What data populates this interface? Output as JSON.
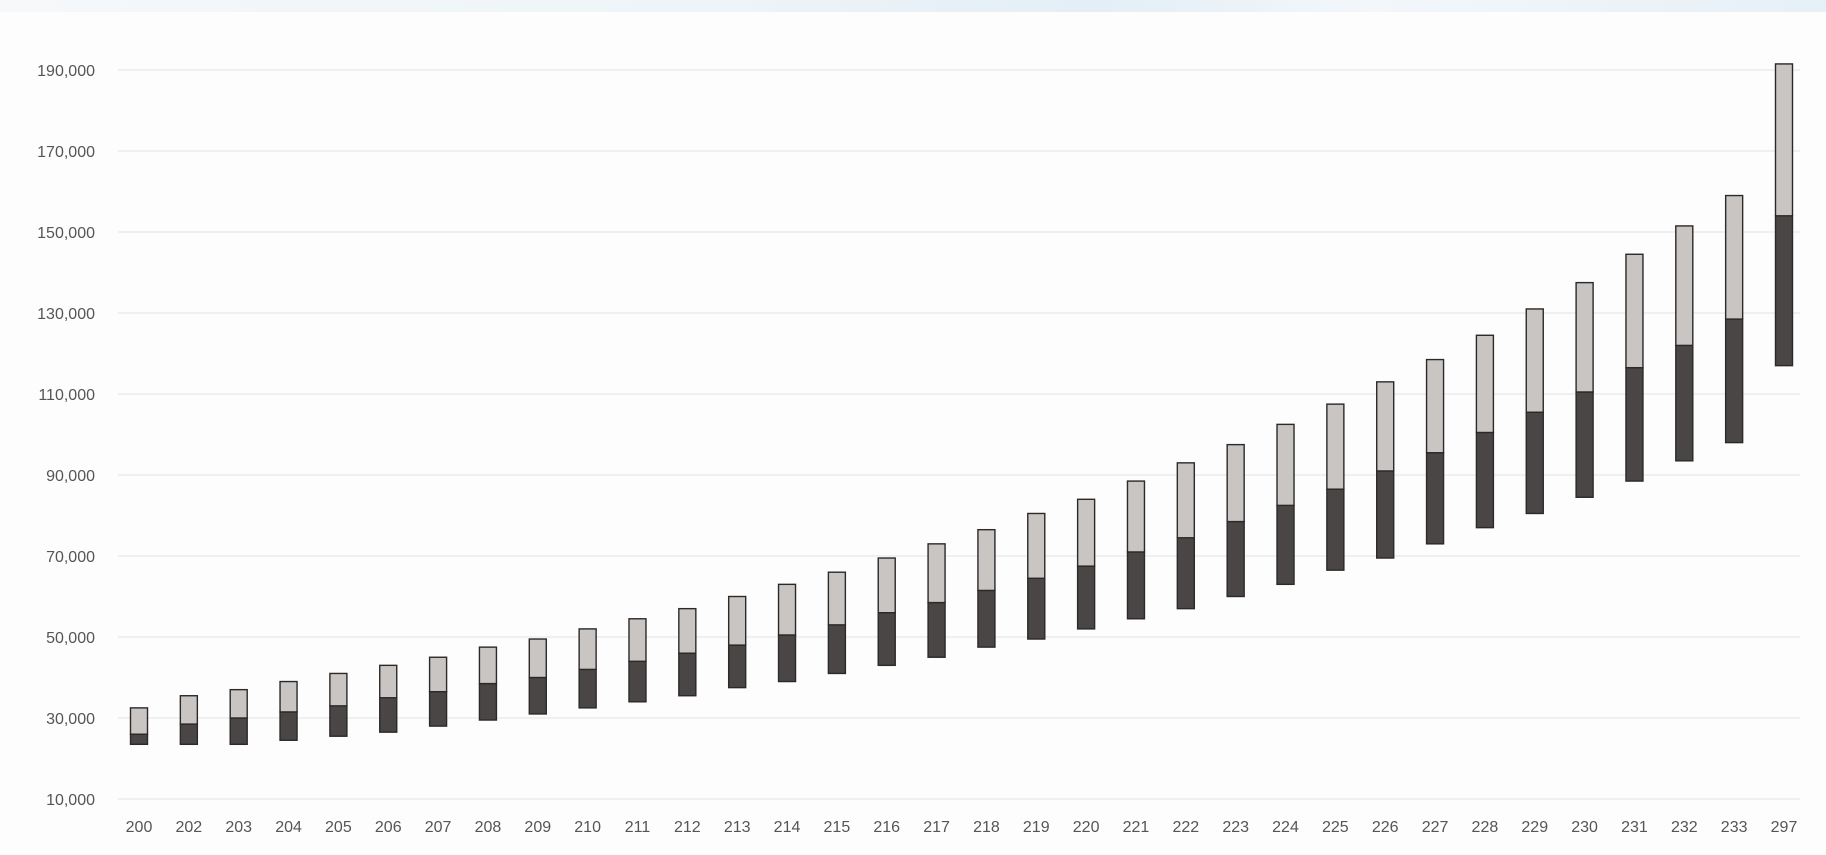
{
  "chart_data": {
    "type": "bar",
    "subtype": "floating-stacked-range",
    "title": "",
    "xlabel": "",
    "ylabel": "",
    "ylim": [
      10000,
      200000
    ],
    "y_ticks": [
      10000,
      30000,
      50000,
      70000,
      90000,
      110000,
      130000,
      150000,
      170000,
      190000
    ],
    "y_tick_labels": [
      "10,000",
      "30,000",
      "50,000",
      "70,000",
      "90,000",
      "110,000",
      "130,000",
      "150,000",
      "170,000",
      "190,000"
    ],
    "grid": "horizontal",
    "legend": "none",
    "categories": [
      "200",
      "202",
      "203",
      "204",
      "205",
      "206",
      "207",
      "208",
      "209",
      "210",
      "211",
      "212",
      "213",
      "214",
      "215",
      "216",
      "217",
      "218",
      "219",
      "220",
      "221",
      "222",
      "223",
      "224",
      "225",
      "226",
      "227",
      "228",
      "229",
      "230",
      "231",
      "232",
      "233",
      "297"
    ],
    "series": [
      {
        "role": "range start (invisible base)",
        "values": [
          23500,
          23500,
          23500,
          24500,
          25500,
          26500,
          28000,
          29500,
          31000,
          32500,
          34000,
          35500,
          37500,
          39000,
          41000,
          43000,
          45000,
          47500,
          49500,
          52000,
          54500,
          57000,
          60000,
          63000,
          66500,
          69500,
          73000,
          77000,
          80500,
          84500,
          88500,
          93500,
          98000,
          117000
        ]
      },
      {
        "role": "lower segment top",
        "color": "#4a4646",
        "values": [
          26000,
          28500,
          30000,
          31500,
          33000,
          35000,
          36500,
          38500,
          40000,
          42000,
          44000,
          46000,
          48000,
          50500,
          53000,
          56000,
          58500,
          61500,
          64500,
          67500,
          71000,
          74500,
          78500,
          82500,
          86500,
          91000,
          95500,
          100500,
          105500,
          110500,
          116500,
          122000,
          128500,
          154000
        ]
      },
      {
        "role": "upper segment top",
        "color": "#c9c5c2",
        "values": [
          32500,
          35500,
          37000,
          39000,
          41000,
          43000,
          45000,
          47500,
          49500,
          52000,
          54500,
          57000,
          60000,
          63000,
          66000,
          69500,
          73000,
          76500,
          80500,
          84000,
          88500,
          93000,
          97500,
          102500,
          107500,
          113000,
          118500,
          124500,
          131000,
          137500,
          144500,
          151500,
          159000,
          191500
        ]
      }
    ],
    "colors": {
      "lower": "#4a4646",
      "upper": "#c9c5c2",
      "outline": "#2b2929",
      "grid": "#e2e2e2",
      "tick_text": "#555555"
    }
  }
}
